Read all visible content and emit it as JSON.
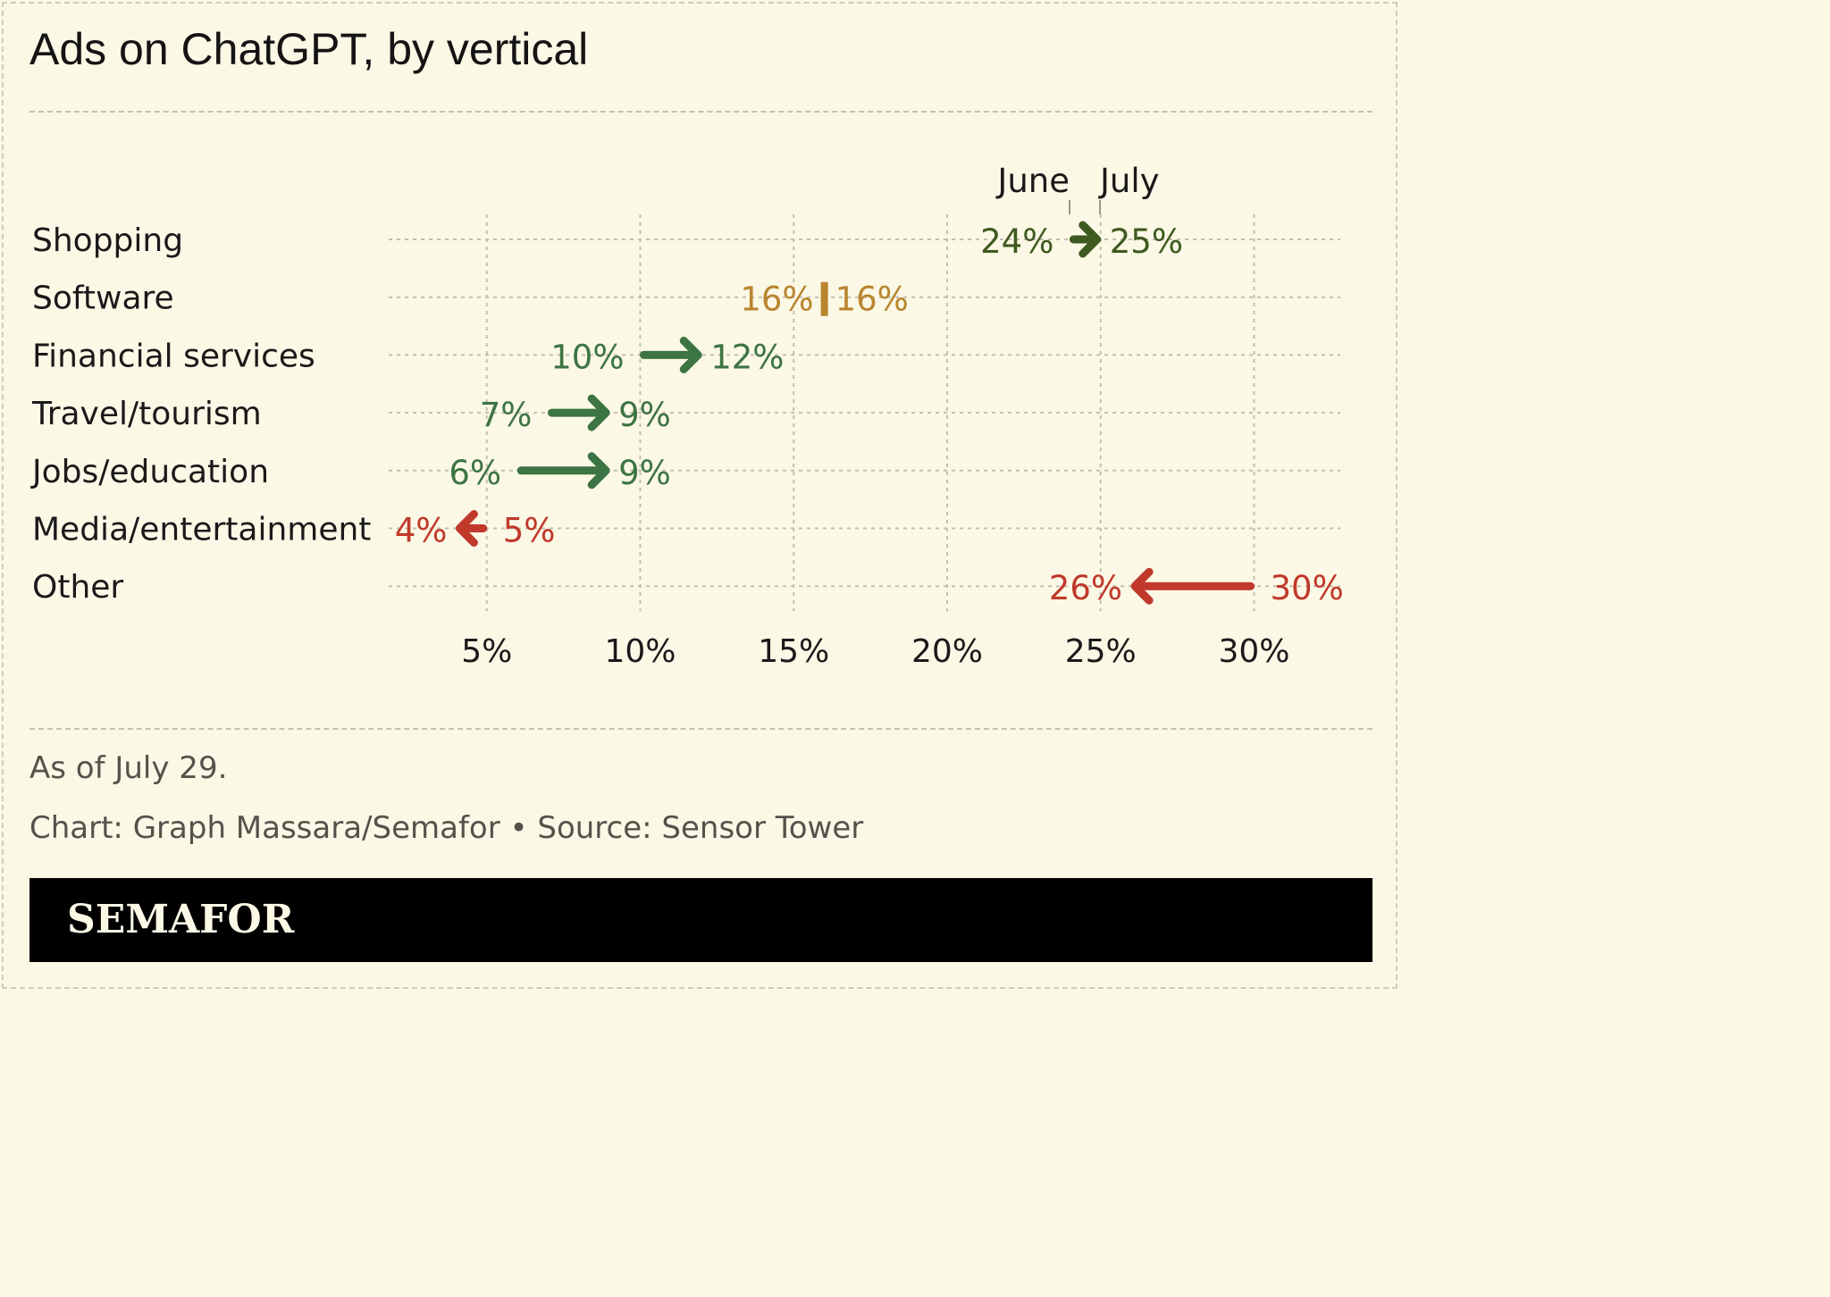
{
  "title": "Ads on ChatGPT, by vertical",
  "notes": {
    "date_note": "As of July 29.",
    "credit": "Chart: Graph Massara/Semafor • Source: Sensor Tower"
  },
  "brand": "SEMAFOR",
  "colors": {
    "background": "#fcf8e6",
    "shopping": "#3e5a1f",
    "increase": "#3d7444",
    "no_change": "#b8852f",
    "decrease": "#c0392b",
    "text": "#1a1a1a"
  },
  "chart_data": {
    "type": "arrow",
    "title": "Ads on ChatGPT, by vertical",
    "legend": [
      "June",
      "July"
    ],
    "x_ticks": [
      5,
      10,
      15,
      20,
      25,
      30
    ],
    "x_tick_labels": [
      "5%",
      "10%",
      "15%",
      "20%",
      "25%",
      "30%"
    ],
    "xlim": [
      2,
      30
    ],
    "grid": true,
    "rows": [
      {
        "label": "Shopping",
        "june": 24,
        "july": 25,
        "june_label": "24%",
        "july_label": "25%",
        "color": "#3e5a1f"
      },
      {
        "label": "Software",
        "june": 16,
        "july": 16,
        "june_label": "16%",
        "july_label": "16%",
        "color": "#b8852f"
      },
      {
        "label": "Financial services",
        "june": 10,
        "july": 12,
        "june_label": "10%",
        "july_label": "12%",
        "color": "#3d7444"
      },
      {
        "label": "Travel/tourism",
        "june": 7,
        "july": 9,
        "june_label": "7%",
        "july_label": "9%",
        "color": "#3d7444"
      },
      {
        "label": "Jobs/education",
        "june": 6,
        "july": 9,
        "june_label": "6%",
        "july_label": "9%",
        "color": "#3d7444"
      },
      {
        "label": "Media/entertainment",
        "june": 5,
        "july": 4,
        "june_label": "5%",
        "july_label": "4%",
        "color": "#c0392b"
      },
      {
        "label": "Other",
        "june": 30,
        "july": 26,
        "june_label": "30%",
        "july_label": "26%",
        "color": "#c0392b"
      }
    ]
  }
}
